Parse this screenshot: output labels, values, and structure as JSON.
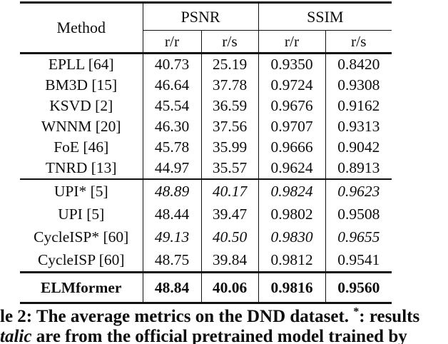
{
  "table": {
    "header": {
      "method_label": "Method",
      "psnr_label": "PSNR",
      "ssim_label": "SSIM",
      "sub": [
        "r/r",
        "r/s",
        "r/r",
        "r/s"
      ]
    },
    "groups": [
      {
        "rows": [
          {
            "method": "EPLL [64]",
            "values": [
              "40.73",
              "25.19",
              "0.9350",
              "0.8420"
            ],
            "values_italic": false,
            "bold": false
          },
          {
            "method": "BM3D [15]",
            "values": [
              "46.64",
              "37.78",
              "0.9724",
              "0.9308"
            ],
            "values_italic": false,
            "bold": false
          },
          {
            "method": "KSVD [2]",
            "values": [
              "45.54",
              "36.59",
              "0.9676",
              "0.9162"
            ],
            "values_italic": false,
            "bold": false
          },
          {
            "method": "WNNM [20]",
            "values": [
              "46.30",
              "37.56",
              "0.9707",
              "0.9313"
            ],
            "values_italic": false,
            "bold": false
          },
          {
            "method": "FoE [46]",
            "values": [
              "45.78",
              "35.99",
              "0.9666",
              "0.9042"
            ],
            "values_italic": false,
            "bold": false
          },
          {
            "method": "TNRD [13]",
            "values": [
              "44.97",
              "35.57",
              "0.9624",
              "0.8913"
            ],
            "values_italic": false,
            "bold": false
          }
        ]
      },
      {
        "rows": [
          {
            "method": "UPI* [5]",
            "values": [
              "48.89",
              "40.17",
              "0.9824",
              "0.9623"
            ],
            "values_italic": true,
            "bold": false
          },
          {
            "method": "UPI [5]",
            "values": [
              "48.44",
              "39.47",
              "0.9802",
              "0.9508"
            ],
            "values_italic": false,
            "bold": false
          },
          {
            "method": "CycleISP* [60]",
            "values": [
              "49.13",
              "40.50",
              "0.9830",
              "0.9655"
            ],
            "values_italic": true,
            "bold": false
          },
          {
            "method": "CycleISP [60]",
            "values": [
              "48.75",
              "39.84",
              "0.9812",
              "0.9541"
            ],
            "values_italic": false,
            "bold": false
          }
        ]
      },
      {
        "rows": [
          {
            "method": "ELMformer",
            "values": [
              "48.84",
              "40.06",
              "0.9816",
              "0.9560"
            ],
            "values_italic": false,
            "bold": true
          }
        ]
      }
    ]
  },
  "caption": {
    "line1_pre": "le 2: The average metrics on the DND dataset. ",
    "line1_star": "*",
    "line1_post": ": results",
    "line2_italic": "talic",
    "line2_rest": " are from the official pretrained model trained by"
  }
}
